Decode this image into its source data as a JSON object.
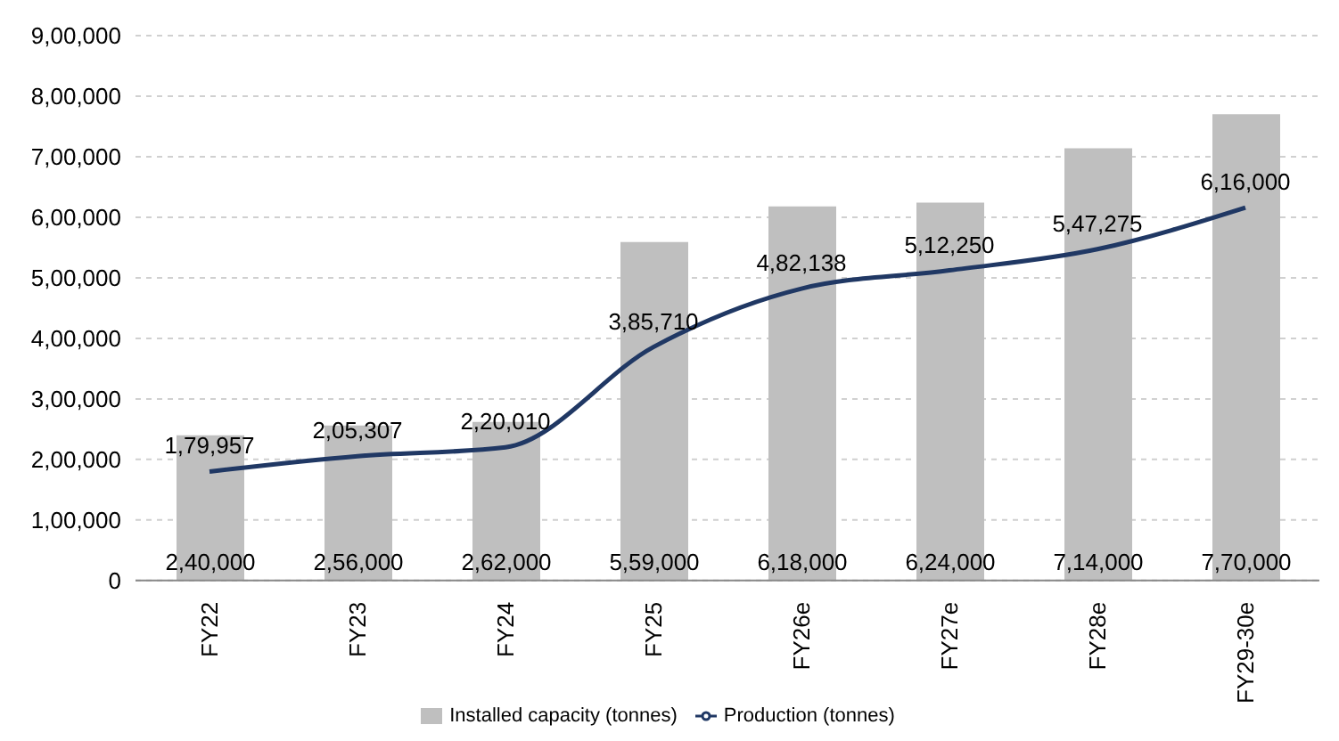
{
  "chart_data": {
    "type": "bar",
    "categories": [
      "FY22",
      "FY23",
      "FY24",
      "FY25",
      "FY26e",
      "FY27e",
      "FY28e",
      "FY29-30e"
    ],
    "series": [
      {
        "name": "Installed capacity (tonnes)",
        "color": "#bfbfbf",
        "values": [
          240000,
          256000,
          262000,
          559000,
          618000,
          624000,
          714000,
          770000
        ],
        "value_labels": [
          "2,40,000",
          "2,56,000",
          "2,62,000",
          "5,59,000",
          "6,18,000",
          "6,24,000",
          "7,14,000",
          "7,70,000"
        ]
      },
      {
        "name": "Production (tonnes)",
        "type": "line",
        "color": "#203864",
        "values": [
          179957,
          205307,
          220010,
          385710,
          482138,
          512250,
          547275,
          616000
        ],
        "value_labels": [
          "1,79,957",
          "2,05,307",
          "2,20,010",
          "3,85,710",
          "4,82,138",
          "5,12,250",
          "5,47,275",
          "6,16,000"
        ]
      }
    ],
    "ylim": [
      0,
      900000
    ],
    "yticks": [
      0,
      {
        "value": 100000,
        "label": "1,00,000"
      },
      {
        "value": 200000,
        "label": "2,00,000"
      },
      {
        "value": 300000,
        "label": "3,00,000"
      },
      {
        "value": 400000,
        "label": "4,00,000"
      },
      {
        "value": 500000,
        "label": "5,00,000"
      },
      {
        "value": 600000,
        "label": "6,00,000"
      },
      {
        "value": 700000,
        "label": "7,00,000"
      },
      {
        "value": 800000,
        "label": "8,00,000"
      },
      {
        "value": 900000,
        "label": "9,00,000"
      }
    ],
    "grid": "y",
    "legend": "bottom",
    "marker": "none"
  }
}
